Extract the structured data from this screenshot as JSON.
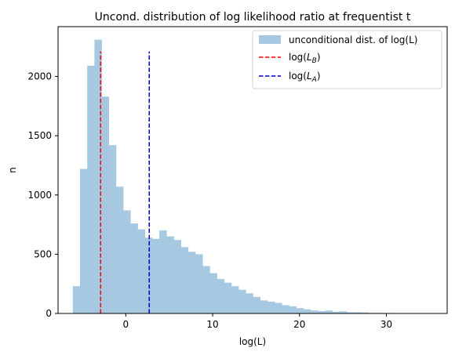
{
  "chart_data": {
    "type": "histogram",
    "title": "Uncond. distribution of log likelihood ratio at frequentist  t",
    "xlabel": "log(L)",
    "ylabel": "n",
    "xlim": [
      -7.8,
      37
    ],
    "ylim": [
      0,
      2420
    ],
    "xticks": [
      0,
      10,
      20,
      30
    ],
    "yticks": [
      0,
      500,
      1000,
      1500,
      2000
    ],
    "bin_start": -6.1,
    "bin_width": 0.83,
    "counts": [
      230,
      1220,
      2090,
      2310,
      1830,
      1420,
      1070,
      870,
      760,
      710,
      640,
      630,
      700,
      650,
      620,
      560,
      520,
      500,
      400,
      340,
      290,
      260,
      230,
      200,
      170,
      140,
      110,
      100,
      90,
      70,
      60,
      45,
      35,
      25,
      20,
      25,
      15,
      18,
      10,
      10,
      8,
      5,
      5,
      4,
      3,
      3,
      2,
      2,
      1,
      1
    ],
    "hist_color": "#a6c8e1",
    "vlines": [
      {
        "name": "log($L_B$)",
        "label_main": "log(",
        "label_sym": "L",
        "label_sub": "B",
        "label_end": ")",
        "x": -2.9,
        "ymax": 2210,
        "color": "#ff0000"
      },
      {
        "name": "log($L_A$)",
        "label_main": "log(",
        "label_sym": "L",
        "label_sub": "A",
        "label_end": ")",
        "x": 2.7,
        "ymax": 2210,
        "color": "#0000cd"
      }
    ],
    "legend": {
      "placement": "top-right",
      "hist_label": "unconditional dist. of log(L)"
    }
  }
}
